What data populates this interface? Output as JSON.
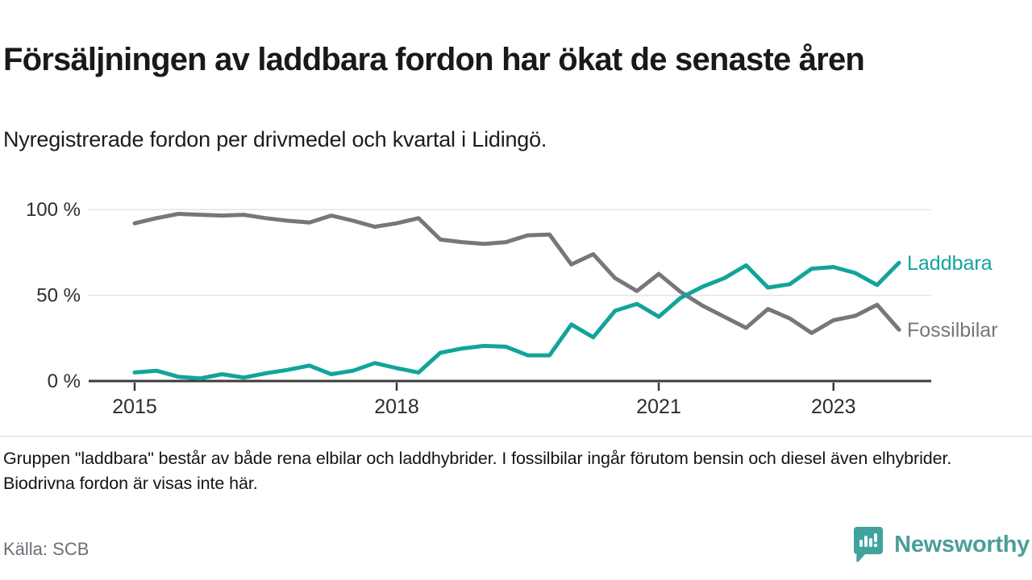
{
  "header": {
    "title": "Försäljningen av laddbara fordon har ökat de senaste åren",
    "subtitle": "Nyregistrerade fordon per drivmedel och kvartal i Lidingö."
  },
  "chart_data": {
    "type": "line",
    "x_start": "2015-Q1",
    "x_step": "quarter",
    "x_count": 36,
    "ylim": [
      0,
      100
    ],
    "grid": "horizontal",
    "legend_position": "right-end-of-line",
    "yticks": [
      {
        "value": 0,
        "label": "0 %"
      },
      {
        "value": 50,
        "label": "50 %"
      },
      {
        "value": 100,
        "label": "100 %"
      }
    ],
    "xticks": [
      {
        "index": 0,
        "label": "2015"
      },
      {
        "index": 12,
        "label": "2018"
      },
      {
        "index": 24,
        "label": "2021"
      },
      {
        "index": 32,
        "label": "2023"
      }
    ],
    "series": [
      {
        "name": "Fossilbilar",
        "color": "#7a757c",
        "values": [
          92,
          95,
          97.5,
          97,
          96.5,
          97,
          95,
          93.5,
          92.5,
          96.5,
          93.5,
          90,
          92,
          95,
          82.5,
          81,
          80,
          81,
          85,
          85.5,
          68,
          74,
          60,
          52.5,
          62.5,
          52,
          44,
          37.5,
          31,
          42,
          36.5,
          28,
          35.5,
          38,
          44.5,
          30
        ]
      },
      {
        "name": "Laddbara",
        "color": "#12a49b",
        "values": [
          5,
          6,
          2.5,
          1.5,
          4,
          2,
          4.5,
          6.5,
          9,
          4,
          6,
          10.5,
          7.5,
          5,
          16.5,
          19,
          20.5,
          20,
          15,
          15,
          33,
          25.5,
          41,
          45,
          37.5,
          48.5,
          55,
          60,
          67.5,
          54.5,
          56.5,
          65.5,
          66.5,
          63,
          56,
          69
        ]
      }
    ],
    "axis_color": "#3a3a3a",
    "gridline_color": "#e3e3e3",
    "tick_label_color": "#2d2d2d"
  },
  "footer": {
    "note": "Gruppen \"laddbara\" består av både rena elbilar och laddhybrider. I fossilbilar ingår förutom bensin och diesel även elhybrider. Biodrivna fordon är visas inte här.",
    "source": "Källa: SCB",
    "brand": "Newsworthy"
  }
}
